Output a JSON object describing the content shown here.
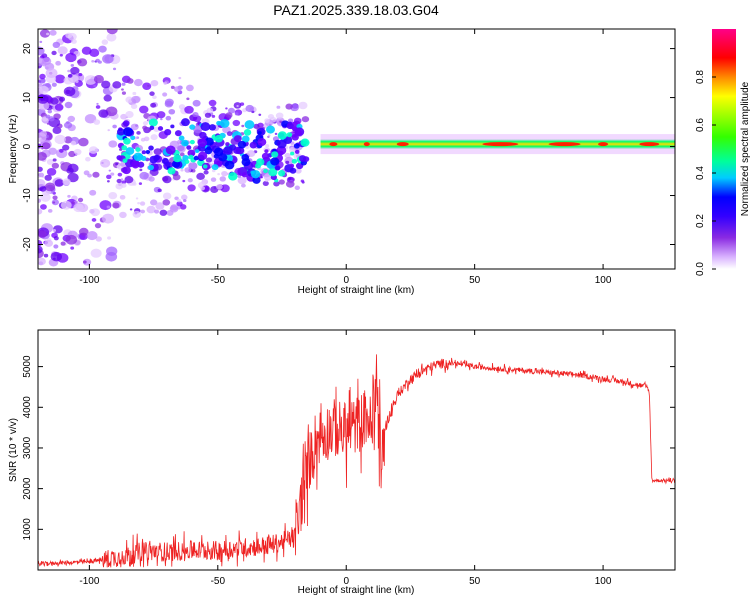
{
  "title": "PAZ1.2025.339.18.03.G04",
  "chart_data": [
    {
      "type": "heatmap",
      "name": "spectrogram",
      "xlabel": "Height of straight line (km)",
      "ylabel": "Frequency (Hz)",
      "xlim": [
        -120,
        128
      ],
      "ylim": [
        -25,
        24
      ],
      "xticks": [
        -100,
        -50,
        0,
        50,
        100
      ],
      "yticks": [
        -20,
        -10,
        0,
        10,
        20
      ],
      "colorbar": {
        "label": "Normalized spectral amplitude",
        "range": [
          0,
          1
        ],
        "ticks": [
          0.0,
          0.2,
          0.4,
          0.6,
          0.8
        ],
        "tick_labels": [
          "0.0",
          "0.2",
          "0.4",
          "0.6",
          "0.8"
        ],
        "colormap": [
          "#ffffff",
          "#b066ff",
          "#6a00ff",
          "#0000ff",
          "#00ccff",
          "#00ff66",
          "#66ff00",
          "#ffff00",
          "#ff8800",
          "#ff0000",
          "#ff0088"
        ]
      },
      "features": {
        "signal_line_start_km": -10,
        "signal_freq_hz": 0.5,
        "scatter_region_km": [
          -120,
          -20
        ]
      }
    },
    {
      "type": "line",
      "name": "snr",
      "xlabel": "Height of straight line (km)",
      "ylabel": "SNR (10 * v/v)",
      "xlim": [
        -120,
        128
      ],
      "ylim": [
        0,
        5900
      ],
      "xticks": [
        -100,
        -50,
        0,
        50,
        100
      ],
      "yticks": [
        1000,
        2000,
        3000,
        4000,
        5000
      ],
      "color": "#ee2222",
      "series": [
        {
          "name": "SNR",
          "x": [
            -120,
            -110,
            -100,
            -90,
            -85,
            -80,
            -70,
            -60,
            -50,
            -40,
            -30,
            -25,
            -20,
            -18,
            -15,
            -12,
            -10,
            -5,
            0,
            5,
            8,
            10,
            12,
            13,
            15,
            20,
            25,
            30,
            35,
            40,
            50,
            60,
            70,
            80,
            90,
            100,
            110,
            117,
            118,
            119,
            120,
            128
          ],
          "y": [
            150,
            180,
            200,
            300,
            350,
            450,
            450,
            480,
            480,
            550,
            600,
            700,
            800,
            1500,
            2500,
            3200,
            3300,
            3500,
            3400,
            3600,
            3800,
            3500,
            5000,
            2200,
            3500,
            4300,
            4700,
            4900,
            5050,
            5100,
            5000,
            4950,
            4900,
            4850,
            4800,
            4700,
            4600,
            4500,
            4400,
            2200,
            2200,
            2200
          ]
        }
      ],
      "noise_amplitude": [
        {
          "x": [
            -120,
            -95
          ],
          "amp": 60
        },
        {
          "x": [
            -95,
            -20
          ],
          "amp": 300
        },
        {
          "x": [
            -20,
            15
          ],
          "amp": 900
        },
        {
          "x": [
            15,
            40
          ],
          "amp": 150
        },
        {
          "x": [
            40,
            118
          ],
          "amp": 80
        },
        {
          "x": [
            118,
            128
          ],
          "amp": 50
        }
      ]
    }
  ]
}
